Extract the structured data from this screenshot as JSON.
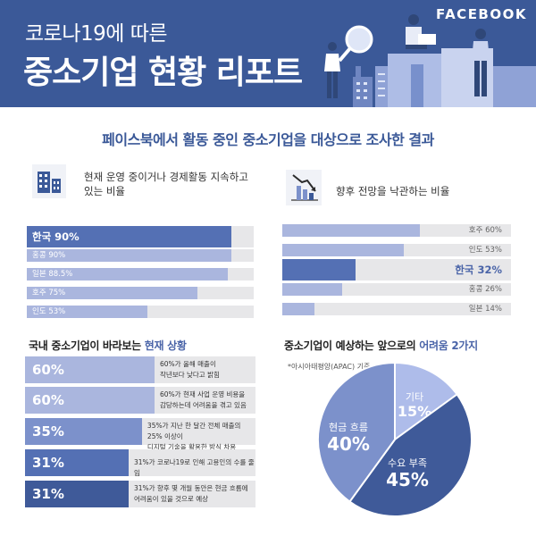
{
  "header": {
    "title_line1": "코로나19에 따른",
    "title_line2": "중소기업 현황 리포트",
    "brand": "FACEBOOK"
  },
  "subtitle": "페이스북에서 활동 중인 중소기업을 대상으로 조사한 결과",
  "icons": {
    "buildings": "buildings-icon",
    "decline_chart": "decline-chart-icon"
  },
  "colors": {
    "brand_blue": "#3b5998",
    "bar_light": "#aab6de",
    "bar_highlight": "#5470b4",
    "track": "#e7e7e9",
    "pie_dark": "#3f5a99",
    "pie_mid": "#7c91cb",
    "pie_light": "#aebcea"
  },
  "chart_data": [
    {
      "type": "bar",
      "orientation": "horizontal",
      "title": "현재 운영 중이거나 경제활동 지속하고 있는 비율",
      "categories": [
        "한국",
        "홍콩",
        "일본",
        "호주",
        "인도"
      ],
      "labels": [
        "한국 90%",
        "홍콩 90%",
        "일본 88.5%",
        "호주 75%",
        "인도 53%"
      ],
      "values": [
        90,
        90,
        88.5,
        75,
        53
      ],
      "unit": "%",
      "xlim": [
        0,
        100
      ],
      "highlight": "한국"
    },
    {
      "type": "bar",
      "orientation": "horizontal",
      "title": "향후 전망을 낙관하는 비율",
      "categories": [
        "호주",
        "인도",
        "한국",
        "홍콩",
        "일본"
      ],
      "labels": [
        "호주 60%",
        "인도 53%",
        "한국 32%",
        "홍콩 26%",
        "일본 14%"
      ],
      "values": [
        60,
        53,
        32,
        26,
        14
      ],
      "unit": "%",
      "xlim": [
        0,
        100
      ],
      "highlight": "한국"
    },
    {
      "type": "bar",
      "orientation": "horizontal",
      "title_plain": "국내 중소기업이 바라보는 ",
      "title_accent": "현재 상황",
      "rows": [
        {
          "value": 60,
          "label": "60%",
          "desc": [
            "60%가 올해 매출이",
            "작년보다 낮다고 밝힘"
          ]
        },
        {
          "value": 60,
          "label": "60%",
          "desc": [
            "60%가 현재 사업 운영 비용을",
            "감당하는데 어려움을 겪고 있음"
          ]
        },
        {
          "value": 35,
          "label": "35%",
          "desc": [
            "35%가 지난 한 달간 전체 매출의 25% 이상이",
            "디지털 기술을 활용한 방식 차용"
          ]
        },
        {
          "value": 31,
          "label": "31%",
          "desc": [
            "31%가 코로나19로 인해 고용인의 수를 줄임"
          ]
        },
        {
          "value": 31,
          "label": "31%",
          "desc": [
            "31%가 향후 몇 개월 동안은 현금 흐름에",
            "어려움이 있을 것으로 예상"
          ]
        }
      ],
      "xlim": [
        0,
        100
      ]
    },
    {
      "type": "pie",
      "title_plain": "중소기업이 예상하는 앞으로의 ",
      "title_accent": "어려움 2가지",
      "note": "*아시아태평양(APAC) 기준",
      "slices": [
        {
          "name": "기타",
          "value": 15,
          "label": "15%"
        },
        {
          "name": "수요 부족",
          "value": 45,
          "label": "45%"
        },
        {
          "name": "현금 흐름",
          "value": 40,
          "label": "40%"
        }
      ]
    }
  ]
}
